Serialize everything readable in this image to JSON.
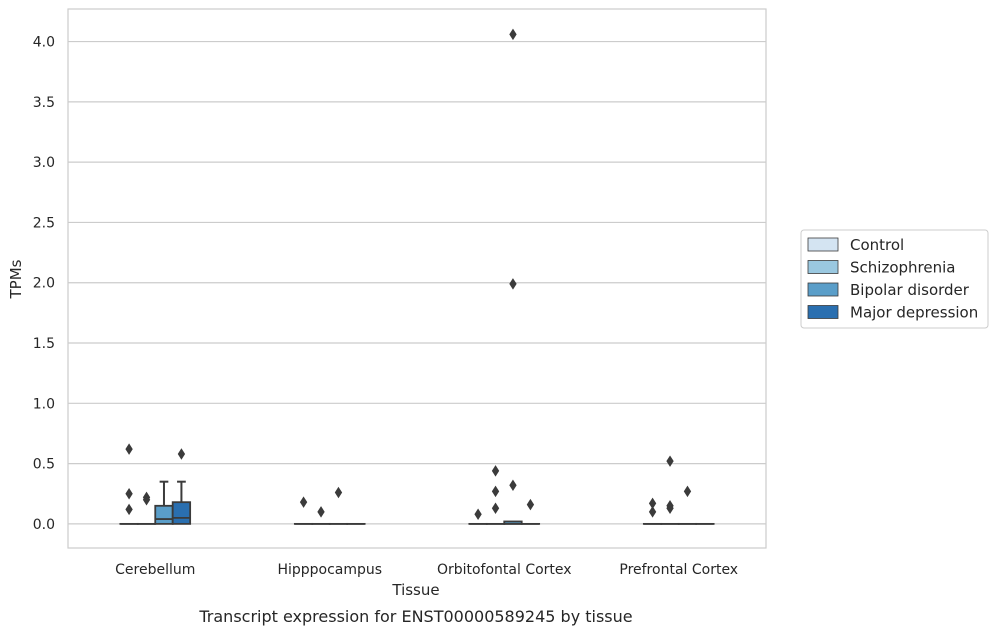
{
  "caption": "Transcript expression for ENST00000589245 by tissue",
  "chart_data": {
    "type": "box",
    "xlabel": "Tissue",
    "ylabel": "TPMs",
    "ylim": [
      -0.2,
      4.27
    ],
    "yticks": [
      "0.0",
      "0.5",
      "1.0",
      "1.5",
      "2.0",
      "2.5",
      "3.0",
      "3.5",
      "4.0"
    ],
    "grid": true,
    "legend_position": "right",
    "categories": [
      "Cerebellum",
      "Hipppocampus",
      "Orbitofontal Cortex",
      "Prefrontal Cortex"
    ],
    "series": [
      {
        "name": "Control",
        "color": "#d4e4f2",
        "boxes": [
          {
            "min": 0,
            "q1": 0,
            "median": 0,
            "q3": 0,
            "max": 0,
            "outliers": [
              0.62,
              0.25,
              0.12
            ]
          },
          {
            "min": 0,
            "q1": 0,
            "median": 0,
            "q3": 0,
            "max": 0,
            "outliers": [
              0.18
            ]
          },
          {
            "min": 0,
            "q1": 0,
            "median": 0,
            "q3": 0,
            "max": 0,
            "outliers": [
              0.08
            ]
          },
          {
            "min": 0,
            "q1": 0,
            "median": 0,
            "q3": 0,
            "max": 0,
            "outliers": [
              0.17,
              0.1
            ]
          }
        ]
      },
      {
        "name": "Schizophrenia",
        "color": "#9ac8e0",
        "boxes": [
          {
            "min": 0,
            "q1": 0,
            "median": 0,
            "q3": 0,
            "max": 0,
            "outliers": [
              0.22,
              0.2
            ]
          },
          {
            "min": 0,
            "q1": 0,
            "median": 0,
            "q3": 0,
            "max": 0,
            "outliers": [
              0.1
            ]
          },
          {
            "min": 0,
            "q1": 0,
            "median": 0,
            "q3": 0,
            "max": 0,
            "outliers": [
              0.44,
              0.27,
              0.13
            ]
          },
          {
            "min": 0,
            "q1": 0,
            "median": 0,
            "q3": 0,
            "max": 0,
            "outliers": [
              0.52,
              0.15,
              0.13
            ]
          }
        ]
      },
      {
        "name": "Bipolar disorder",
        "color": "#5a9ec9",
        "boxes": [
          {
            "min": 0,
            "q1": 0,
            "median": 0.04,
            "q3": 0.15,
            "max": 0.35,
            "outliers": []
          },
          {
            "min": 0,
            "q1": 0,
            "median": 0,
            "q3": 0,
            "max": 0,
            "outliers": [
              0.26
            ]
          },
          {
            "min": 0,
            "q1": 0,
            "median": 0,
            "q3": 0.02,
            "max": 0.02,
            "outliers": [
              4.06,
              1.99,
              0.32
            ]
          },
          {
            "min": 0,
            "q1": 0,
            "median": 0,
            "q3": 0,
            "max": 0,
            "outliers": [
              0.27
            ]
          }
        ]
      },
      {
        "name": "Major depression",
        "color": "#2a6fb0",
        "boxes": [
          {
            "min": 0,
            "q1": 0,
            "median": 0.05,
            "q3": 0.18,
            "max": 0.35,
            "outliers": [
              0.58
            ]
          },
          {
            "min": 0,
            "q1": 0,
            "median": 0,
            "q3": 0,
            "max": 0,
            "outliers": []
          },
          {
            "min": 0,
            "q1": 0,
            "median": 0,
            "q3": 0,
            "max": 0,
            "outliers": [
              0.16
            ]
          },
          {
            "min": 0,
            "q1": 0,
            "median": 0,
            "q3": 0,
            "max": 0,
            "outliers": []
          }
        ]
      }
    ]
  }
}
